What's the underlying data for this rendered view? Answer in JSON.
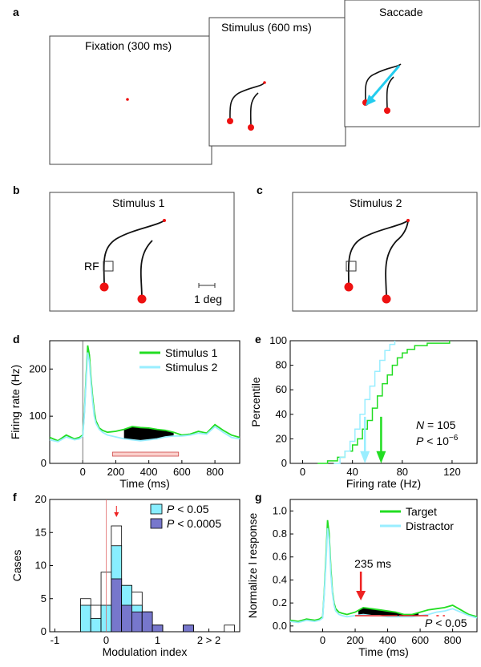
{
  "panels": {
    "a": {
      "letter": "a",
      "screens": [
        {
          "title": "Fixation (300 ms)"
        },
        {
          "title": "Stimulus (600 ms)"
        },
        {
          "title": "Saccade"
        }
      ]
    },
    "b": {
      "letter": "b",
      "title": "Stimulus 1",
      "rf_label": "RF",
      "scale_label": "1 deg"
    },
    "c": {
      "letter": "c",
      "title": "Stimulus 2"
    }
  },
  "chart_data": [
    {
      "panel": "d",
      "type": "line",
      "xlabel": "Time (ms)",
      "ylabel": "Firing rate (Hz)",
      "xlim": [
        -200,
        950
      ],
      "ylim": [
        0,
        260
      ],
      "xticks": [
        0,
        200,
        400,
        600,
        800
      ],
      "yticks": [
        0,
        100,
        200
      ],
      "series": [
        {
          "name": "Stimulus 1",
          "color": "#22dd22",
          "x": [
            -200,
            -150,
            -100,
            -50,
            -20,
            0,
            10,
            20,
            30,
            40,
            50,
            60,
            70,
            80,
            100,
            120,
            150,
            200,
            250,
            300,
            350,
            400,
            450,
            500,
            550,
            600,
            650,
            700,
            750,
            800,
            850,
            900,
            950
          ],
          "y": [
            55,
            48,
            60,
            52,
            55,
            60,
            110,
            180,
            250,
            230,
            180,
            140,
            110,
            90,
            75,
            70,
            66,
            68,
            72,
            78,
            76,
            75,
            72,
            70,
            66,
            60,
            62,
            68,
            64,
            82,
            70,
            60,
            55
          ]
        },
        {
          "name": "Stimulus 2",
          "color": "#99eeff",
          "x": [
            -200,
            -150,
            -100,
            -50,
            -20,
            0,
            10,
            20,
            30,
            40,
            50,
            60,
            70,
            80,
            100,
            120,
            150,
            200,
            250,
            300,
            350,
            400,
            450,
            500,
            550,
            600,
            650,
            700,
            750,
            800,
            850,
            900,
            950
          ],
          "y": [
            50,
            46,
            56,
            50,
            52,
            58,
            105,
            170,
            235,
            215,
            170,
            130,
            100,
            85,
            72,
            66,
            60,
            56,
            52,
            50,
            48,
            50,
            52,
            56,
            58,
            58,
            60,
            64,
            62,
            78,
            66,
            55,
            52
          ]
        }
      ],
      "shaded_interval_ms": [
        180,
        580
      ]
    },
    {
      "panel": "e",
      "type": "line",
      "xlabel": "Firing rate (Hz)",
      "ylabel": "Percentile",
      "xlim": [
        -10,
        140
      ],
      "ylim": [
        0,
        100
      ],
      "xticks": [
        0,
        40,
        80,
        120
      ],
      "yticks": [
        0,
        20,
        40,
        60,
        80,
        100
      ],
      "series": [
        {
          "name": "",
          "color": "#22dd22",
          "x": [
            12,
            20,
            28,
            34,
            40,
            44,
            48,
            52,
            56,
            60,
            64,
            68,
            72,
            76,
            80,
            84,
            90,
            100,
            118
          ],
          "y": [
            0,
            2,
            5,
            10,
            15,
            20,
            28,
            35,
            45,
            55,
            65,
            72,
            80,
            86,
            90,
            93,
            96,
            98,
            100
          ]
        },
        {
          "name": "",
          "color": "#99eeff",
          "x": [
            25,
            30,
            34,
            38,
            42,
            46,
            50,
            54,
            58,
            62,
            66,
            70,
            74
          ],
          "y": [
            0,
            5,
            10,
            18,
            28,
            40,
            52,
            63,
            75,
            84,
            92,
            97,
            100
          ]
        }
      ],
      "arrows": [
        {
          "x": 50,
          "color": "#99eeff"
        },
        {
          "x": 63,
          "color": "#22dd22"
        }
      ],
      "annotation_n": "N",
      "annotation_n_value": "= 105",
      "annotation_p": "P",
      "annotation_p_value": "< 10",
      "annotation_p_exp": "−6"
    },
    {
      "panel": "f",
      "type": "bar",
      "xlabel": "Modulation index",
      "ylabel": "Cases",
      "xlim": [
        -1.1,
        2.6
      ],
      "ylim": [
        0,
        20
      ],
      "xticks": [
        "-1",
        "0",
        "1",
        "2 > 2"
      ],
      "yticks": [
        0,
        5,
        10,
        15,
        20
      ],
      "bin_width": 0.2,
      "bins": [
        {
          "left": -0.5,
          "all": 5,
          "p05": 4,
          "p0005": 0
        },
        {
          "left": -0.3,
          "all": 4,
          "p05": 2,
          "p0005": 0
        },
        {
          "left": -0.1,
          "all": 9,
          "p05": 4,
          "p0005": 0
        },
        {
          "left": 0.1,
          "all": 16,
          "p05": 13,
          "p0005": 8
        },
        {
          "left": 0.3,
          "all": 7,
          "p05": 7,
          "p0005": 4
        },
        {
          "left": 0.5,
          "all": 6,
          "p05": 4,
          "p0005": 3
        },
        {
          "left": 0.7,
          "all": 3,
          "p05": 3,
          "p0005": 3
        },
        {
          "left": 0.9,
          "all": 1,
          "p05": 1,
          "p0005": 1
        },
        {
          "left": 1.5,
          "all": 1,
          "p05": 1,
          "p0005": 1
        },
        {
          "left": 2.3,
          "all": 1,
          "p05": 0,
          "p0005": 0
        }
      ],
      "legend": [
        {
          "italic": "P",
          "text": " < 0.05",
          "color": "#88eeff"
        },
        {
          "italic": "P",
          "text": " < 0.0005",
          "color": "#7777cc"
        }
      ],
      "mean_marker": 0.2
    },
    {
      "panel": "g",
      "type": "line",
      "xlabel": "Time (ms)",
      "ylabel": "Normalize l response",
      "xlim": [
        -200,
        950
      ],
      "ylim": [
        -0.05,
        1.1
      ],
      "xticks": [
        0,
        200,
        400,
        600,
        800
      ],
      "yticks": [
        0,
        0.2,
        0.4,
        0.6,
        0.8,
        1.0
      ],
      "series": [
        {
          "name": "Target",
          "color": "#22dd22",
          "x": [
            -200,
            -150,
            -100,
            -50,
            -20,
            0,
            10,
            20,
            30,
            40,
            50,
            60,
            70,
            80,
            100,
            120,
            150,
            200,
            250,
            300,
            350,
            400,
            450,
            500,
            550,
            600,
            650,
            700,
            750,
            800,
            850,
            900,
            950
          ],
          "y": [
            0.05,
            0.04,
            0.06,
            0.05,
            0.06,
            0.08,
            0.3,
            0.6,
            0.92,
            0.8,
            0.5,
            0.3,
            0.2,
            0.15,
            0.12,
            0.11,
            0.1,
            0.12,
            0.16,
            0.15,
            0.14,
            0.13,
            0.12,
            0.1,
            0.1,
            0.12,
            0.14,
            0.15,
            0.16,
            0.18,
            0.14,
            0.1,
            0.08
          ]
        },
        {
          "name": "Distractor",
          "color": "#99eeff",
          "x": [
            -200,
            -150,
            -100,
            -50,
            -20,
            0,
            10,
            20,
            30,
            40,
            50,
            60,
            70,
            80,
            100,
            120,
            150,
            200,
            250,
            300,
            350,
            400,
            450,
            500,
            550,
            600,
            650,
            700,
            750,
            800,
            850,
            900,
            950
          ],
          "y": [
            0.04,
            0.03,
            0.05,
            0.04,
            0.05,
            0.07,
            0.28,
            0.55,
            0.85,
            0.75,
            0.45,
            0.28,
            0.18,
            0.13,
            0.1,
            0.09,
            0.08,
            0.09,
            0.1,
            0.09,
            0.09,
            0.08,
            0.08,
            0.08,
            0.08,
            0.09,
            0.1,
            0.12,
            0.13,
            0.15,
            0.12,
            0.09,
            0.07
          ]
        }
      ],
      "arrow_label": "235 ms",
      "arrow_x": 235,
      "sig_label_p": "P",
      "sig_label_rest": " < 0.05"
    }
  ]
}
